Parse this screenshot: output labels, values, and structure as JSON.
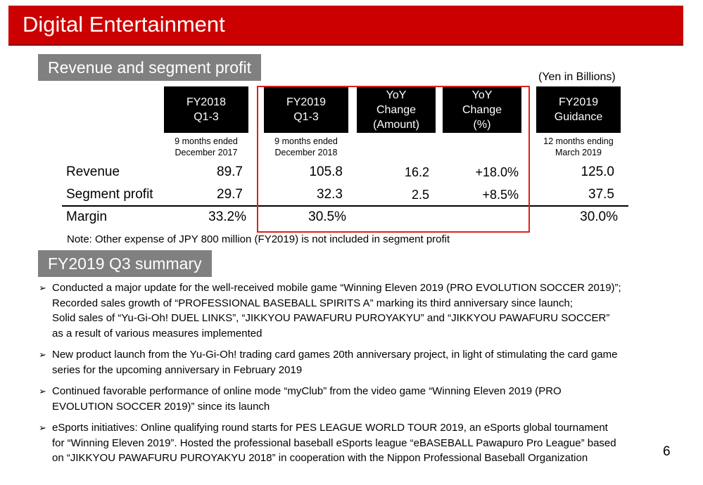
{
  "banner": {
    "title": "Digital Entertainment",
    "color": "#cc0000"
  },
  "revenue_section": {
    "label": "Revenue and segment profit",
    "unit_note": "(Yen in Billions)",
    "columns": [
      {
        "header": [
          "FY2018",
          "Q1-3"
        ],
        "sub": [
          "9 months ended",
          "December 2017"
        ]
      },
      {
        "header": [
          "FY2019",
          "Q1-3"
        ],
        "sub": [
          "9 months ended",
          "December 2018"
        ]
      },
      {
        "header": [
          "YoY",
          "Change",
          "(Amount)"
        ],
        "sub": []
      },
      {
        "header": [
          "YoY",
          "Change",
          "(%)"
        ],
        "sub": []
      },
      {
        "header": [
          "FY2019",
          "Guidance"
        ],
        "sub": [
          "12 months ending",
          "March 2019"
        ]
      }
    ],
    "rows": [
      {
        "label": "Revenue",
        "values": [
          "89.7",
          "105.8",
          "16.2",
          "+18.0%",
          "125.0"
        ]
      },
      {
        "label": "Segment profit",
        "values": [
          "29.7",
          "32.3",
          "2.5",
          "+8.5%",
          "37.5"
        ]
      },
      {
        "label": "Margin",
        "values": [
          "33.2%",
          "30.5%",
          "",
          "",
          "30.0%"
        ]
      }
    ],
    "note": "Note: Other expense of JPY 800 million (FY2019) is not included in segment profit"
  },
  "summary_section": {
    "label": "FY2019 Q3 summary",
    "bullet_icon": "arrow-bullet-icon",
    "bullets": [
      [
        "Conducted a major update for the well-received mobile game “Winning Eleven 2019 (PRO EVOLUTION SOCCER 2019)”;",
        "Recorded sales growth of “PROFESSIONAL BASEBALL SPIRITS A” marking its third anniversary since launch;",
        "Solid sales of “Yu-Gi-Oh! DUEL LINKS”, “JIKKYOU PAWAFURU PUROYAKYU” and “JIKKYOU PAWAFURU SOCCER”",
        "as a result of various measures implemented"
      ],
      [
        "New product launch from the Yu-Gi-Oh! trading card games 20th anniversary project, in light of stimulating the card game",
        "series for the upcoming anniversary in February 2019"
      ],
      [
        "Continued favorable performance of online mode “myClub” from the video game “Winning Eleven 2019 (PRO",
        "EVOLUTION SOCCER 2019)” since its launch"
      ],
      [
        "eSports initiatives: Online qualifying round starts for PES LEAGUE WORLD TOUR 2019, an eSports global tournament",
        "for  “Winning Eleven 2019”. Hosted the professional baseball eSports league “eBASEBALL Pawapuro Pro League” based",
        "on “JIKKYOU PAWAFURU PUROYAKYU 2018” in cooperation with the Nippon Professional Baseball Organization"
      ]
    ]
  },
  "page_number": "6"
}
